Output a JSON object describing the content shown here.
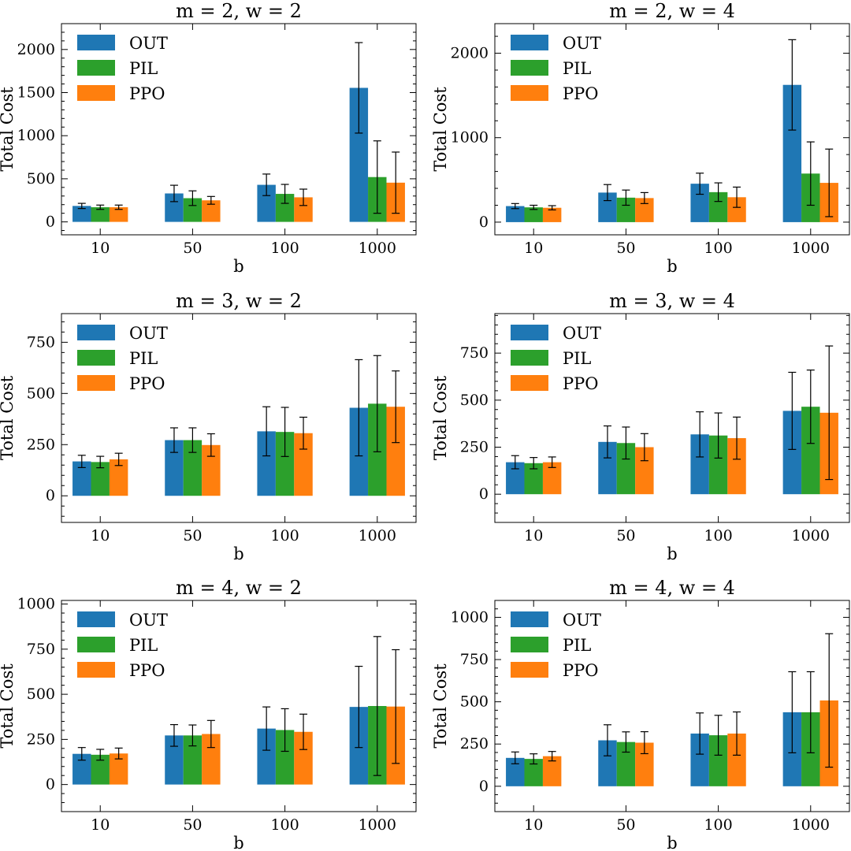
{
  "colors": {
    "OUT": "#1f77b4",
    "PIL": "#2ca02c",
    "PPO": "#ff7f0e"
  },
  "chart_data": [
    {
      "type": "bar",
      "title": "m = 2, w = 2",
      "xlabel": "b",
      "ylabel": "Total Cost",
      "categories": [
        "10",
        "50",
        "100",
        "1000"
      ],
      "ylim": [
        -150,
        2300
      ],
      "yticks": [
        0,
        500,
        1000,
        1500,
        2000
      ],
      "legend": "top-left",
      "series": [
        {
          "name": "OUT",
          "values": [
            185,
            330,
            430,
            1555
          ],
          "errors": [
            30,
            95,
            125,
            525
          ]
        },
        {
          "name": "PIL",
          "values": [
            170,
            275,
            325,
            520
          ],
          "errors": [
            25,
            85,
            110,
            420
          ]
        },
        {
          "name": "PPO",
          "values": [
            170,
            250,
            285,
            455
          ],
          "errors": [
            25,
            45,
            95,
            355
          ]
        }
      ]
    },
    {
      "type": "bar",
      "title": "m = 2, w = 4",
      "xlabel": "b",
      "ylabel": "Total Cost",
      "categories": [
        "10",
        "50",
        "100",
        "1000"
      ],
      "ylim": [
        -150,
        2350
      ],
      "yticks": [
        0,
        1000,
        2000
      ],
      "legend": "top-left",
      "series": [
        {
          "name": "OUT",
          "values": [
            190,
            350,
            455,
            1625
          ],
          "errors": [
            30,
            95,
            125,
            535
          ]
        },
        {
          "name": "PIL",
          "values": [
            175,
            290,
            355,
            575
          ],
          "errors": [
            25,
            90,
            110,
            375
          ]
        },
        {
          "name": "PPO",
          "values": [
            170,
            285,
            295,
            465
          ],
          "errors": [
            25,
            65,
            120,
            400
          ]
        }
      ]
    },
    {
      "type": "bar",
      "title": "m = 3, w = 2",
      "xlabel": "b",
      "ylabel": "Total Cost",
      "categories": [
        "10",
        "50",
        "100",
        "1000"
      ],
      "ylim": [
        -130,
        890
      ],
      "yticks": [
        0,
        250,
        500,
        750
      ],
      "legend": "top-left",
      "series": [
        {
          "name": "OUT",
          "values": [
            168,
            272,
            315,
            430
          ],
          "errors": [
            30,
            60,
            120,
            235
          ]
        },
        {
          "name": "PIL",
          "values": [
            165,
            272,
            312,
            450
          ],
          "errors": [
            28,
            60,
            120,
            235
          ]
        },
        {
          "name": "PPO",
          "values": [
            178,
            248,
            306,
            435
          ],
          "errors": [
            30,
            55,
            78,
            175
          ]
        }
      ]
    },
    {
      "type": "bar",
      "title": "m = 3, w = 4",
      "xlabel": "b",
      "ylabel": "Total Cost",
      "categories": [
        "10",
        "50",
        "100",
        "1000"
      ],
      "ylim": [
        -150,
        960
      ],
      "yticks": [
        0,
        250,
        500,
        750
      ],
      "legend": "top-left",
      "series": [
        {
          "name": "OUT",
          "values": [
            170,
            278,
            318,
            443
          ],
          "errors": [
            35,
            85,
            120,
            205
          ]
        },
        {
          "name": "PIL",
          "values": [
            165,
            272,
            312,
            465
          ],
          "errors": [
            30,
            85,
            120,
            195
          ]
        },
        {
          "name": "PPO",
          "values": [
            170,
            250,
            298,
            433
          ],
          "errors": [
            28,
            72,
            112,
            355
          ]
        }
      ]
    },
    {
      "type": "bar",
      "title": "m = 4, w = 2",
      "xlabel": "b",
      "ylabel": "Total Cost",
      "categories": [
        "10",
        "50",
        "100",
        "1000"
      ],
      "ylim": [
        -150,
        1020
      ],
      "yticks": [
        0,
        250,
        500,
        750,
        1000
      ],
      "legend": "top-left",
      "series": [
        {
          "name": "OUT",
          "values": [
            170,
            272,
            310,
            430
          ],
          "errors": [
            35,
            60,
            120,
            225
          ]
        },
        {
          "name": "PIL",
          "values": [
            165,
            272,
            302,
            435
          ],
          "errors": [
            30,
            58,
            118,
            385
          ]
        },
        {
          "name": "PPO",
          "values": [
            172,
            280,
            292,
            432
          ],
          "errors": [
            30,
            75,
            98,
            315
          ]
        }
      ]
    },
    {
      "type": "bar",
      "title": "m = 4, w = 4",
      "xlabel": "b",
      "ylabel": "Total Cost",
      "categories": [
        "10",
        "50",
        "100",
        "1000"
      ],
      "ylim": [
        -150,
        1100
      ],
      "yticks": [
        0,
        250,
        500,
        750,
        1000
      ],
      "legend": "top-left",
      "series": [
        {
          "name": "OUT",
          "values": [
            168,
            272,
            312,
            438
          ],
          "errors": [
            35,
            92,
            122,
            240
          ]
        },
        {
          "name": "PIL",
          "values": [
            162,
            262,
            302,
            438
          ],
          "errors": [
            30,
            60,
            118,
            240
          ]
        },
        {
          "name": "PPO",
          "values": [
            178,
            258,
            312,
            508
          ],
          "errors": [
            28,
            65,
            128,
            395
          ]
        }
      ]
    }
  ]
}
